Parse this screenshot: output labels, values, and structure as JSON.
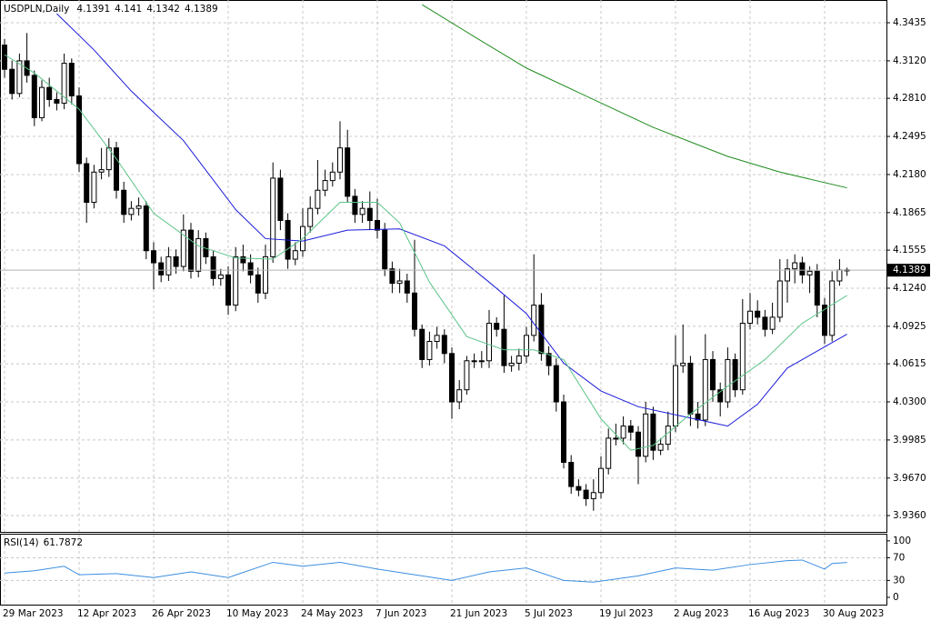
{
  "chart_data": [
    {
      "type": "candlestick",
      "title": "USDPLN,Daily",
      "categories": [
        "29 Mar 2023",
        null,
        null,
        null,
        null,
        null,
        null,
        null,
        null,
        null,
        "12 Apr 2023",
        null,
        null,
        null,
        null,
        null,
        null,
        null,
        null,
        null,
        "26 Apr 2023",
        null,
        null,
        null,
        null,
        null,
        null,
        null,
        null,
        null,
        "10 May 2023",
        null,
        null,
        null,
        null,
        null,
        null,
        null,
        null,
        null,
        "24 May 2023",
        null,
        null,
        null,
        null,
        null,
        null,
        null,
        null,
        null,
        "7 Jun 2023",
        null,
        null,
        null,
        null,
        null,
        null,
        null,
        null,
        null,
        "21 Jun 2023",
        null,
        null,
        null,
        null,
        null,
        null,
        null,
        null,
        null,
        "5 Jul 2023",
        null,
        null,
        null,
        null,
        null,
        null,
        null,
        null,
        null,
        "19 Jul 2023",
        null,
        null,
        null,
        null,
        null,
        null,
        null,
        null,
        null,
        "2 Aug 2023",
        null,
        null,
        null,
        null,
        null,
        null,
        null,
        null,
        null,
        "16 Aug 2023",
        null,
        null,
        null,
        null,
        null,
        null,
        null,
        null,
        null,
        "30 Aug 2023",
        null,
        null,
        null
      ],
      "ohlc": [
        [
          4.325,
          4.33,
          4.298,
          4.305
        ],
        [
          4.305,
          4.312,
          4.28,
          4.285
        ],
        [
          4.285,
          4.318,
          4.282,
          4.312
        ],
        [
          4.312,
          4.335,
          4.294,
          4.3
        ],
        [
          4.3,
          4.304,
          4.258,
          4.265
        ],
        [
          4.265,
          4.296,
          4.262,
          4.29
        ],
        [
          4.29,
          4.298,
          4.274,
          4.28
        ],
        [
          4.28,
          4.286,
          4.271,
          4.277
        ],
        [
          4.277,
          4.318,
          4.272,
          4.31
        ],
        [
          4.31,
          4.314,
          4.276,
          4.283
        ],
        [
          4.283,
          4.29,
          4.22,
          4.227
        ],
        [
          4.227,
          4.232,
          4.178,
          4.195
        ],
        [
          4.195,
          4.226,
          4.19,
          4.22
        ],
        [
          4.22,
          4.24,
          4.214,
          4.222
        ],
        [
          4.222,
          4.248,
          4.216,
          4.24
        ],
        [
          4.24,
          4.245,
          4.198,
          4.205
        ],
        [
          4.205,
          4.212,
          4.178,
          4.185
        ],
        [
          4.185,
          4.196,
          4.18,
          4.19
        ],
        [
          4.19,
          4.199,
          4.184,
          4.192
        ],
        [
          4.192,
          4.196,
          4.148,
          4.155
        ],
        [
          4.155,
          4.162,
          4.123,
          4.145
        ],
        [
          4.145,
          4.15,
          4.129,
          4.135
        ],
        [
          4.135,
          4.158,
          4.13,
          4.15
        ],
        [
          4.15,
          4.156,
          4.136,
          4.142
        ],
        [
          4.142,
          4.185,
          4.138,
          4.172
        ],
        [
          4.172,
          4.178,
          4.132,
          4.138
        ],
        [
          4.138,
          4.172,
          4.133,
          4.165
        ],
        [
          4.165,
          4.17,
          4.144,
          4.15
        ],
        [
          4.15,
          4.155,
          4.126,
          4.132
        ],
        [
          4.132,
          4.14,
          4.126,
          4.135
        ],
        [
          4.135,
          4.142,
          4.102,
          4.11
        ],
        [
          4.11,
          4.158,
          4.105,
          4.15
        ],
        [
          4.15,
          4.16,
          4.138,
          4.145
        ],
        [
          4.145,
          4.152,
          4.128,
          4.135
        ],
        [
          4.135,
          4.141,
          4.112,
          4.12
        ],
        [
          4.12,
          4.16,
          4.115,
          4.15
        ],
        [
          4.15,
          4.228,
          4.145,
          4.215
        ],
        [
          4.215,
          4.222,
          4.172,
          4.18
        ],
        [
          4.18,
          4.186,
          4.14,
          4.148
        ],
        [
          4.148,
          4.162,
          4.143,
          4.155
        ],
        [
          4.155,
          4.19,
          4.15,
          4.175
        ],
        [
          4.175,
          4.2,
          4.17,
          4.19
        ],
        [
          4.19,
          4.23,
          4.185,
          4.205
        ],
        [
          4.205,
          4.222,
          4.2,
          4.213
        ],
        [
          4.213,
          4.228,
          4.208,
          4.22
        ],
        [
          4.22,
          4.262,
          4.214,
          4.24
        ],
        [
          4.24,
          4.255,
          4.195,
          4.2
        ],
        [
          4.2,
          4.206,
          4.178,
          4.185
        ],
        [
          4.185,
          4.196,
          4.178,
          4.19
        ],
        [
          4.19,
          4.204,
          4.172,
          4.18
        ],
        [
          4.18,
          4.198,
          4.165,
          4.172
        ],
        [
          4.172,
          4.178,
          4.134,
          4.14
        ],
        [
          4.14,
          4.146,
          4.12,
          4.128
        ],
        [
          4.128,
          4.14,
          4.12,
          4.13
        ],
        [
          4.13,
          4.136,
          4.112,
          4.12
        ],
        [
          4.12,
          4.164,
          4.084,
          4.09
        ],
        [
          4.09,
          4.094,
          4.058,
          4.065
        ],
        [
          4.065,
          4.088,
          4.06,
          4.08
        ],
        [
          4.08,
          4.092,
          4.074,
          4.085
        ],
        [
          4.085,
          4.09,
          4.062,
          4.07
        ],
        [
          4.07,
          4.075,
          4.016,
          4.03
        ],
        [
          4.03,
          4.048,
          4.024,
          4.04
        ],
        [
          4.04,
          4.068,
          4.036,
          4.064
        ],
        [
          4.064,
          4.07,
          4.058,
          4.064
        ],
        [
          4.064,
          4.072,
          4.058,
          4.064
        ],
        [
          4.064,
          4.106,
          4.058,
          4.095
        ],
        [
          4.095,
          4.1,
          4.084,
          4.09
        ],
        [
          4.09,
          4.118,
          4.054,
          4.06
        ],
        [
          4.06,
          4.068,
          4.055,
          4.062
        ],
        [
          4.062,
          4.074,
          4.056,
          4.068
        ],
        [
          4.068,
          4.092,
          4.062,
          4.085
        ],
        [
          4.085,
          4.152,
          4.08,
          4.11
        ],
        [
          4.11,
          4.12,
          4.064,
          4.07
        ],
        [
          4.07,
          4.076,
          4.052,
          4.06
        ],
        [
          4.06,
          4.066,
          4.022,
          4.03
        ],
        [
          4.03,
          4.036,
          3.975,
          3.98
        ],
        [
          3.98,
          3.986,
          3.954,
          3.96
        ],
        [
          3.96,
          3.966,
          3.952,
          3.957
        ],
        [
          3.957,
          3.962,
          3.944,
          3.95
        ],
        [
          3.95,
          3.966,
          3.94,
          3.955
        ],
        [
          3.955,
          3.985,
          3.95,
          3.975
        ],
        [
          3.975,
          4.008,
          3.97,
          4.0
        ],
        [
          4.0,
          4.012,
          3.994,
          4.0
        ],
        [
          4.0,
          4.018,
          3.995,
          4.01
        ],
        [
          4.01,
          4.015,
          3.998,
          4.005
        ],
        [
          4.005,
          4.01,
          3.962,
          3.985
        ],
        [
          3.985,
          4.03,
          3.98,
          4.02
        ],
        [
          4.02,
          4.026,
          3.982,
          3.99
        ],
        [
          3.99,
          4.0,
          3.986,
          3.995
        ],
        [
          3.995,
          4.022,
          3.99,
          4.01
        ],
        [
          4.01,
          4.085,
          4.005,
          4.06
        ],
        [
          4.06,
          4.094,
          4.054,
          4.062
        ],
        [
          4.062,
          4.068,
          4.01,
          4.02
        ],
        [
          4.02,
          4.03,
          4.008,
          4.015
        ],
        [
          4.015,
          4.086,
          4.01,
          4.065
        ],
        [
          4.065,
          4.072,
          4.03,
          4.04
        ],
        [
          4.04,
          4.046,
          4.018,
          4.03
        ],
        [
          4.03,
          4.075,
          4.025,
          4.065
        ],
        [
          4.065,
          4.07,
          4.034,
          4.04
        ],
        [
          4.04,
          4.115,
          4.036,
          4.095
        ],
        [
          4.095,
          4.12,
          4.09,
          4.105
        ],
        [
          4.105,
          4.114,
          4.094,
          4.1
        ],
        [
          4.1,
          4.106,
          4.084,
          4.09
        ],
        [
          4.09,
          4.112,
          4.086,
          4.1
        ],
        [
          4.1,
          4.148,
          4.096,
          4.13
        ],
        [
          4.13,
          4.148,
          4.112,
          4.14
        ],
        [
          4.14,
          4.152,
          4.128,
          4.145
        ],
        [
          4.145,
          4.15,
          4.128,
          4.135
        ],
        [
          4.135,
          4.142,
          4.12,
          4.138
        ],
        [
          4.138,
          4.144,
          4.1,
          4.11
        ],
        [
          4.11,
          4.116,
          4.078,
          4.085
        ],
        [
          4.085,
          4.138,
          4.08,
          4.13
        ],
        [
          4.13,
          4.148,
          4.126,
          4.1391
        ],
        [
          4.1391,
          4.141,
          4.1342,
          4.1389
        ]
      ],
      "series": [
        {
          "color": "#1a1adb",
          "x": [
            7,
            12,
            17,
            24,
            31,
            35,
            40,
            46,
            53,
            59,
            65,
            70,
            75,
            80,
            85,
            91,
            97,
            101,
            105,
            113
          ],
          "values": [
            4.351,
            4.321,
            4.287,
            4.246,
            4.189,
            4.165,
            4.163,
            4.172,
            4.173,
            4.159,
            4.129,
            4.103,
            4.062,
            4.039,
            4.026,
            4.018,
            4.01,
            4.028,
            4.058,
            4.086
          ]
        },
        {
          "color": "#1e8c1e",
          "x": [
            56,
            63,
            70,
            79,
            87,
            97,
            104,
            113
          ],
          "values": [
            4.3585,
            4.332,
            4.306,
            4.28,
            4.257,
            4.233,
            4.22,
            4.207
          ]
        },
        {
          "color": "#5cc48a",
          "x": [
            0,
            4,
            10,
            15,
            20,
            26,
            31,
            36,
            40,
            45,
            50,
            53,
            57,
            62,
            67,
            71,
            75,
            80,
            84,
            87,
            92,
            97,
            102,
            107,
            113
          ],
          "values": [
            4.317,
            4.302,
            4.272,
            4.231,
            4.186,
            4.159,
            4.149,
            4.148,
            4.165,
            4.195,
            4.195,
            4.178,
            4.129,
            4.084,
            4.073,
            4.073,
            4.065,
            4.016,
            3.99,
            3.994,
            4.02,
            4.043,
            4.065,
            4.095,
            4.118
          ]
        }
      ],
      "ylim": [
        3.9225,
        4.3623
      ],
      "yticks": [
        4.3435,
        {
          "value": 4.312,
          "label": "4.3120"
        },
        {
          "value": 4.281,
          "label": "4.2810"
        },
        4.2495,
        {
          "value": 4.218,
          "label": "4.2180"
        },
        4.1865,
        4.1555,
        {
          "value": 4.124,
          "label": "4.1240"
        },
        4.0925,
        4.0615,
        {
          "value": 4.03,
          "label": "4.0300"
        },
        3.9985,
        {
          "value": 3.967,
          "label": "3.9670"
        },
        {
          "value": 3.936,
          "label": "3.9360"
        }
      ],
      "grid": true
    },
    {
      "type": "line",
      "title": "RSI(14)",
      "color": "#3c8ee0",
      "x": [
        0,
        4,
        8,
        10,
        15,
        20,
        25,
        30,
        36,
        40,
        45,
        50,
        55,
        60,
        65,
        70,
        75,
        79,
        85,
        90,
        95,
        100,
        105,
        107,
        110,
        111,
        113
      ],
      "values": [
        43,
        47,
        55,
        40,
        42,
        35,
        45,
        35,
        62,
        55,
        62,
        50,
        40,
        30,
        45,
        52,
        30,
        27,
        38,
        52,
        48,
        58,
        65,
        66,
        50,
        60,
        61.7872
      ],
      "ylim": [
        -14.5,
        111
      ],
      "yticks": [
        100,
        70,
        30,
        0
      ],
      "grid": true
    }
  ]
}
